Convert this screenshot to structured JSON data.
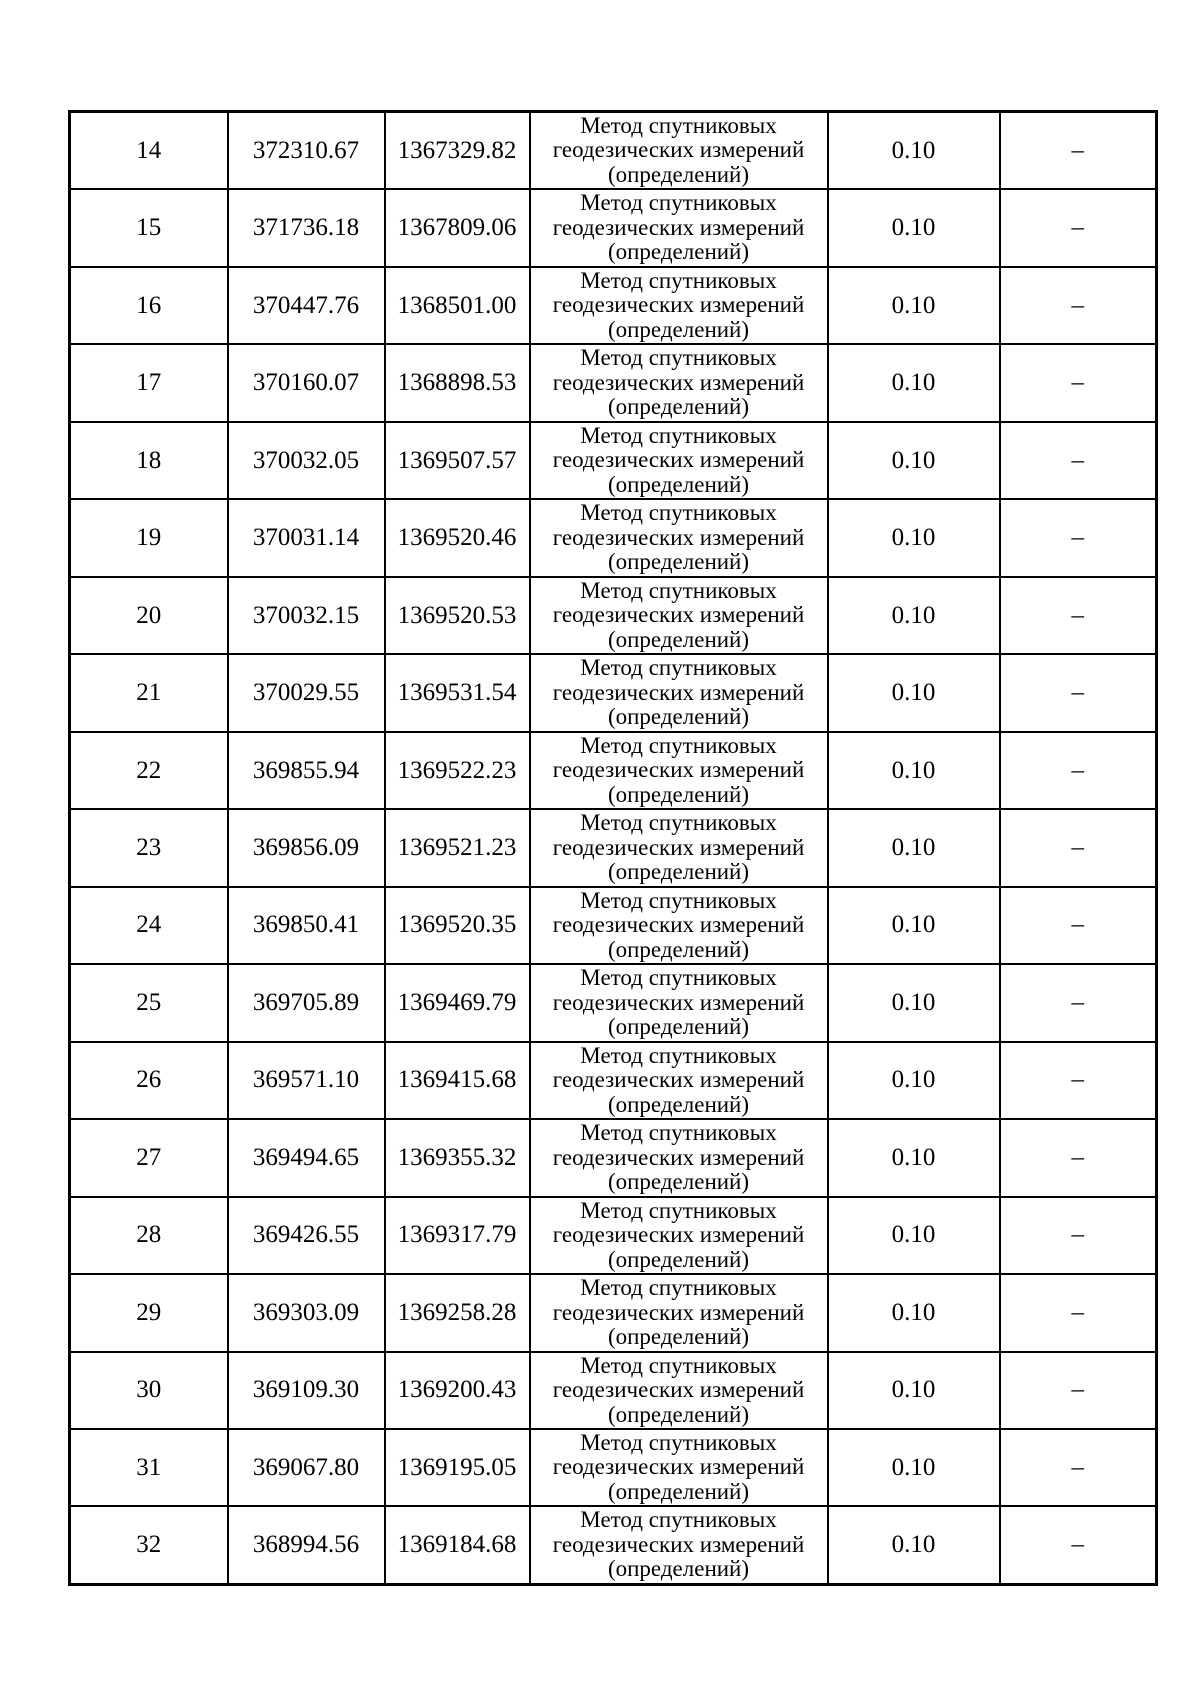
{
  "page": {
    "background": "#ffffff",
    "text_color": "#000000"
  },
  "table": {
    "method_text_lines": [
      "Метод спутниковых",
      "геодезических измерений",
      "(определений)"
    ],
    "rows": [
      {
        "n": "14",
        "x": "372310.67",
        "y": "1367329.82",
        "precision": "0.10",
        "note": "–"
      },
      {
        "n": "15",
        "x": "371736.18",
        "y": "1367809.06",
        "precision": "0.10",
        "note": "–"
      },
      {
        "n": "16",
        "x": "370447.76",
        "y": "1368501.00",
        "precision": "0.10",
        "note": "–"
      },
      {
        "n": "17",
        "x": "370160.07",
        "y": "1368898.53",
        "precision": "0.10",
        "note": "–"
      },
      {
        "n": "18",
        "x": "370032.05",
        "y": "1369507.57",
        "precision": "0.10",
        "note": "–"
      },
      {
        "n": "19",
        "x": "370031.14",
        "y": "1369520.46",
        "precision": "0.10",
        "note": "–"
      },
      {
        "n": "20",
        "x": "370032.15",
        "y": "1369520.53",
        "precision": "0.10",
        "note": "–"
      },
      {
        "n": "21",
        "x": "370029.55",
        "y": "1369531.54",
        "precision": "0.10",
        "note": "–"
      },
      {
        "n": "22",
        "x": "369855.94",
        "y": "1369522.23",
        "precision": "0.10",
        "note": "–"
      },
      {
        "n": "23",
        "x": "369856.09",
        "y": "1369521.23",
        "precision": "0.10",
        "note": "–"
      },
      {
        "n": "24",
        "x": "369850.41",
        "y": "1369520.35",
        "precision": "0.10",
        "note": "–"
      },
      {
        "n": "25",
        "x": "369705.89",
        "y": "1369469.79",
        "precision": "0.10",
        "note": "–"
      },
      {
        "n": "26",
        "x": "369571.10",
        "y": "1369415.68",
        "precision": "0.10",
        "note": "–"
      },
      {
        "n": "27",
        "x": "369494.65",
        "y": "1369355.32",
        "precision": "0.10",
        "note": "–"
      },
      {
        "n": "28",
        "x": "369426.55",
        "y": "1369317.79",
        "precision": "0.10",
        "note": "–"
      },
      {
        "n": "29",
        "x": "369303.09",
        "y": "1369258.28",
        "precision": "0.10",
        "note": "–"
      },
      {
        "n": "30",
        "x": "369109.30",
        "y": "1369200.43",
        "precision": "0.10",
        "note": "–"
      },
      {
        "n": "31",
        "x": "369067.80",
        "y": "1369195.05",
        "precision": "0.10",
        "note": "–"
      },
      {
        "n": "32",
        "x": "368994.56",
        "y": "1369184.68",
        "precision": "0.10",
        "note": "–"
      }
    ]
  }
}
